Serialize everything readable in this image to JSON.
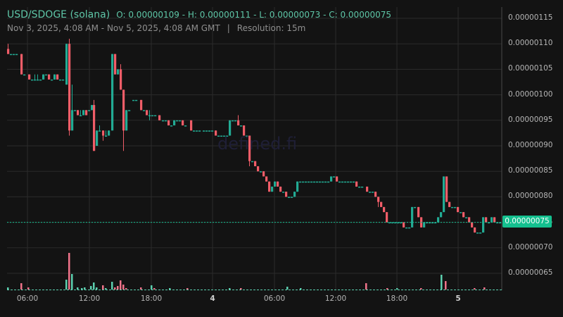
{
  "header": {
    "pair": "USD/SDOGE (solana)",
    "ohlc": "O: 0.00000109 - H: 0.00000111 - L: 0.00000073 - C: 0.00000075",
    "range": "Nov 3, 2025, 4:08 AM - Nov 5, 2025, 4:08 AM GMT",
    "separator": "|",
    "resolution": "Resolution: 15m"
  },
  "watermark": "defined.fi",
  "current_price_label": "0.00000075",
  "colors": {
    "background": "#131313",
    "grid": "#2b2b2b",
    "up": "#22ab94",
    "down": "#f05d68",
    "vol_up": "#5ccfaf",
    "vol_down": "#f0738a",
    "price_tag": "#14c08f",
    "text": "#b5b5b5",
    "header_accent": "#5fc7a8"
  },
  "chart_data": {
    "type": "candlestick",
    "title": "USD/SDOGE (solana)",
    "subtitle": "Nov 3, 2025, 4:08 AM - Nov 5, 2025, 4:08 AM GMT | Resolution: 15m",
    "price_unit": "1e-8",
    "y_ticks": [
      "0.00000115",
      "0.00000110",
      "0.00000105",
      "0.00000100",
      "0.00000095",
      "0.00000090",
      "0.00000085",
      "0.00000080",
      "0.00000075",
      "0.00000070",
      "0.00000065"
    ],
    "x_ticks": [
      {
        "label": "06:00",
        "x": 39,
        "bold": false
      },
      {
        "label": "12:00",
        "x": 127,
        "bold": false
      },
      {
        "label": "18:00",
        "x": 215,
        "bold": false
      },
      {
        "label": "4",
        "x": 302,
        "bold": true
      },
      {
        "label": "06:00",
        "x": 390,
        "bold": false
      },
      {
        "label": "12:00",
        "x": 477,
        "bold": false
      },
      {
        "label": "18:00",
        "x": 564,
        "bold": false
      },
      {
        "label": "5",
        "x": 651,
        "bold": true
      }
    ],
    "ylim": [
      6.2e-07,
      1.17e-06
    ],
    "last_price": 75,
    "candles": [
      [
        10,
        109,
        108,
        110,
        108
      ],
      [
        14,
        108,
        108,
        108,
        108
      ],
      [
        18,
        108,
        108,
        108,
        108
      ],
      [
        22,
        108,
        108,
        108,
        108
      ],
      [
        29,
        108,
        104,
        108,
        104
      ],
      [
        33,
        104,
        104,
        104,
        104
      ],
      [
        40,
        104,
        103,
        104,
        103
      ],
      [
        44,
        103,
        103,
        103,
        103
      ],
      [
        48,
        103,
        103,
        104,
        103
      ],
      [
        52,
        103,
        103,
        104,
        103
      ],
      [
        56,
        103,
        103,
        103,
        103
      ],
      [
        60,
        103,
        104,
        104,
        103
      ],
      [
        64,
        104,
        104,
        104,
        104
      ],
      [
        68,
        104,
        103,
        104,
        103
      ],
      [
        72,
        103,
        103,
        103,
        103
      ],
      [
        76,
        103,
        104,
        104,
        103
      ],
      [
        80,
        104,
        103,
        104,
        103
      ],
      [
        84,
        103,
        103,
        103,
        103
      ],
      [
        88,
        103,
        103,
        103,
        103
      ],
      [
        93,
        102,
        110,
        110,
        102
      ],
      [
        97,
        110,
        93,
        111,
        92
      ],
      [
        101,
        93,
        97,
        102,
        93
      ],
      [
        105,
        97,
        97,
        97,
        97
      ],
      [
        109,
        97,
        96,
        97,
        96
      ],
      [
        113,
        96,
        96,
        97,
        96
      ],
      [
        117,
        96,
        97,
        97,
        96
      ],
      [
        121,
        97,
        96,
        97,
        96
      ],
      [
        125,
        97,
        97,
        97,
        97
      ],
      [
        129,
        97,
        98,
        98,
        97
      ],
      [
        132,
        98,
        89,
        99,
        89
      ],
      [
        136,
        90,
        93,
        93,
        90
      ],
      [
        140,
        93,
        93,
        94,
        93
      ],
      [
        145,
        93,
        92,
        93,
        91
      ],
      [
        149,
        92,
        92,
        93,
        92
      ],
      [
        153,
        92,
        93,
        93,
        92
      ],
      [
        158,
        93,
        108,
        108,
        93
      ],
      [
        162,
        108,
        104,
        108,
        104
      ],
      [
        166,
        104,
        105,
        105,
        104
      ],
      [
        170,
        105,
        101,
        106,
        101
      ],
      [
        174,
        101,
        93,
        101,
        89
      ],
      [
        178,
        93,
        97,
        97,
        93
      ],
      [
        182,
        97,
        97,
        97,
        97
      ],
      [
        188,
        99,
        99,
        99,
        99
      ],
      [
        192,
        99,
        99,
        99,
        99
      ],
      [
        199,
        99,
        97,
        99,
        97
      ],
      [
        203,
        97,
        97,
        97,
        97
      ],
      [
        207,
        97,
        96,
        97,
        96
      ],
      [
        211,
        96,
        96,
        97,
        95
      ],
      [
        215,
        96,
        96,
        96,
        96
      ],
      [
        219,
        96,
        96,
        96,
        96
      ],
      [
        225,
        96,
        95,
        96,
        95
      ],
      [
        230,
        95,
        95,
        95,
        95
      ],
      [
        234,
        95,
        95,
        95,
        95
      ],
      [
        238,
        95,
        94,
        95,
        94
      ],
      [
        242,
        94,
        94,
        94,
        94
      ],
      [
        246,
        94,
        95,
        95,
        94
      ],
      [
        250,
        95,
        95,
        95,
        95
      ],
      [
        254,
        95,
        95,
        95,
        95
      ],
      [
        258,
        95,
        94,
        95,
        94
      ],
      [
        262,
        94,
        94,
        94,
        94
      ],
      [
        270,
        95,
        93,
        95,
        93
      ],
      [
        274,
        93,
        93,
        93,
        93
      ],
      [
        278,
        93,
        93,
        93,
        93
      ],
      [
        282,
        93,
        93,
        93,
        93
      ],
      [
        288,
        93,
        93,
        93,
        93
      ],
      [
        292,
        93,
        93,
        93,
        93
      ],
      [
        296,
        93,
        93,
        93,
        93
      ],
      [
        300,
        93,
        93,
        93,
        93
      ],
      [
        305,
        93,
        92,
        93,
        92
      ],
      [
        309,
        92,
        92,
        92,
        92
      ],
      [
        313,
        92,
        92,
        92,
        92
      ],
      [
        317,
        92,
        92,
        92,
        92
      ],
      [
        321,
        92,
        92,
        92,
        92
      ],
      [
        325,
        92,
        95,
        95,
        92
      ],
      [
        329,
        95,
        95,
        95,
        95
      ],
      [
        333,
        95,
        95,
        95,
        95
      ],
      [
        337,
        95,
        94,
        96,
        94
      ],
      [
        341,
        94,
        94,
        94,
        94
      ],
      [
        345,
        94,
        92,
        94,
        92
      ],
      [
        349,
        92,
        92,
        92,
        92
      ],
      [
        353,
        92,
        87,
        92,
        86
      ],
      [
        357,
        87,
        87,
        87,
        87
      ],
      [
        361,
        87,
        86,
        87,
        86
      ],
      [
        365,
        86,
        85,
        86,
        85
      ],
      [
        369,
        85,
        85,
        85,
        85
      ],
      [
        373,
        85,
        84,
        85,
        84
      ],
      [
        377,
        84,
        83,
        84,
        83
      ],
      [
        381,
        83,
        81,
        83,
        81
      ],
      [
        385,
        81,
        82,
        82,
        81
      ],
      [
        389,
        82,
        83,
        83,
        82
      ],
      [
        393,
        83,
        82,
        83,
        82
      ],
      [
        397,
        82,
        81,
        82,
        81
      ],
      [
        401,
        81,
        81,
        81,
        81
      ],
      [
        405,
        81,
        80,
        81,
        80
      ],
      [
        409,
        80,
        80,
        80,
        80
      ],
      [
        413,
        80,
        80,
        80,
        80
      ],
      [
        417,
        80,
        81,
        81,
        80
      ],
      [
        421,
        81,
        83,
        83,
        81
      ],
      [
        425,
        83,
        83,
        83,
        83
      ],
      [
        429,
        83,
        83,
        83,
        83
      ],
      [
        433,
        83,
        83,
        83,
        83
      ],
      [
        437,
        83,
        83,
        83,
        83
      ],
      [
        441,
        83,
        83,
        83,
        83
      ],
      [
        445,
        83,
        83,
        83,
        83
      ],
      [
        449,
        83,
        83,
        83,
        83
      ],
      [
        453,
        83,
        83,
        83,
        83
      ],
      [
        457,
        83,
        83,
        83,
        83
      ],
      [
        461,
        83,
        83,
        83,
        83
      ],
      [
        465,
        83,
        83,
        83,
        83
      ],
      [
        469,
        83,
        84,
        84,
        83
      ],
      [
        473,
        84,
        84,
        84,
        84
      ],
      [
        477,
        84,
        83,
        84,
        83
      ],
      [
        481,
        83,
        83,
        83,
        83
      ],
      [
        485,
        83,
        83,
        83,
        83
      ],
      [
        489,
        83,
        83,
        83,
        83
      ],
      [
        493,
        83,
        83,
        83,
        83
      ],
      [
        497,
        83,
        83,
        83,
        83
      ],
      [
        501,
        83,
        83,
        83,
        83
      ],
      [
        505,
        83,
        82,
        83,
        82
      ],
      [
        509,
        82,
        82,
        82,
        82
      ],
      [
        513,
        82,
        82,
        82,
        82
      ],
      [
        520,
        82,
        81,
        82,
        81
      ],
      [
        524,
        81,
        81,
        81,
        81
      ],
      [
        528,
        81,
        81,
        81,
        81
      ],
      [
        532,
        81,
        80,
        81,
        80
      ],
      [
        536,
        80,
        79,
        80,
        78
      ],
      [
        540,
        79,
        78,
        79,
        78
      ],
      [
        544,
        78,
        77,
        78,
        77
      ],
      [
        548,
        77,
        75,
        77,
        75
      ],
      [
        552,
        75,
        75,
        75,
        75
      ],
      [
        556,
        75,
        75,
        75,
        75
      ],
      [
        560,
        75,
        75,
        75,
        75
      ],
      [
        564,
        75,
        75,
        75,
        75
      ],
      [
        568,
        75,
        75,
        75,
        75
      ],
      [
        572,
        75,
        74,
        75,
        74
      ],
      [
        576,
        74,
        74,
        74,
        74
      ],
      [
        580,
        74,
        74,
        74,
        74
      ],
      [
        584,
        74,
        78,
        78,
        74
      ],
      [
        588,
        78,
        78,
        78,
        78
      ],
      [
        593,
        78,
        76,
        78,
        76
      ],
      [
        597,
        76,
        74,
        76,
        74
      ],
      [
        601,
        74,
        75,
        75,
        74
      ],
      [
        605,
        75,
        75,
        75,
        75
      ],
      [
        609,
        75,
        75,
        75,
        75
      ],
      [
        613,
        75,
        75,
        75,
        75
      ],
      [
        617,
        75,
        75,
        75,
        75
      ],
      [
        621,
        75,
        76,
        76,
        75
      ],
      [
        625,
        76,
        77,
        77,
        76
      ],
      [
        629,
        77,
        84,
        84,
        77
      ],
      [
        633,
        84,
        79,
        84,
        79
      ],
      [
        637,
        79,
        78,
        79,
        78
      ],
      [
        641,
        78,
        78,
        78,
        78
      ],
      [
        645,
        78,
        78,
        78,
        78
      ],
      [
        649,
        78,
        77,
        78,
        77
      ],
      [
        653,
        77,
        77,
        77,
        77
      ],
      [
        657,
        77,
        76,
        77,
        76
      ],
      [
        661,
        76,
        76,
        76,
        76
      ],
      [
        665,
        76,
        75,
        76,
        75
      ],
      [
        669,
        75,
        74,
        75,
        74
      ],
      [
        673,
        74,
        73,
        74,
        73
      ],
      [
        677,
        73,
        73,
        73,
        73
      ],
      [
        681,
        73,
        73,
        73,
        73
      ],
      [
        685,
        73,
        76,
        76,
        73
      ],
      [
        689,
        76,
        75,
        76,
        75
      ],
      [
        693,
        75,
        75,
        75,
        75
      ],
      [
        697,
        75,
        76,
        76,
        75
      ],
      [
        701,
        76,
        75,
        76,
        75
      ],
      [
        705,
        75,
        75,
        75,
        75
      ],
      [
        709,
        75,
        75,
        75,
        75
      ]
    ],
    "volumes": [
      [
        10,
        3,
        1
      ],
      [
        29,
        9,
        0
      ],
      [
        39,
        3,
        0
      ],
      [
        93,
        14,
        1
      ],
      [
        97,
        52,
        0
      ],
      [
        101,
        22,
        1
      ],
      [
        109,
        3,
        1
      ],
      [
        115,
        2,
        1
      ],
      [
        119,
        3,
        1
      ],
      [
        128,
        5,
        1
      ],
      [
        132,
        10,
        1
      ],
      [
        136,
        3,
        1
      ],
      [
        145,
        6,
        0
      ],
      [
        149,
        2,
        1
      ],
      [
        158,
        11,
        1
      ],
      [
        162,
        3,
        0
      ],
      [
        166,
        5,
        0
      ],
      [
        170,
        13,
        0
      ],
      [
        174,
        7,
        0
      ],
      [
        178,
        2,
        0
      ],
      [
        199,
        3,
        0
      ],
      [
        214,
        6,
        1
      ],
      [
        218,
        2,
        0
      ],
      [
        240,
        2,
        1
      ],
      [
        265,
        2,
        0
      ],
      [
        325,
        2,
        1
      ],
      [
        341,
        2,
        0
      ],
      [
        407,
        4,
        1
      ],
      [
        426,
        2,
        1
      ],
      [
        519,
        9,
        0
      ],
      [
        549,
        2,
        0
      ],
      [
        563,
        2,
        1
      ],
      [
        597,
        2,
        0
      ],
      [
        626,
        21,
        1
      ],
      [
        632,
        12,
        0
      ],
      [
        673,
        2,
        0
      ],
      [
        687,
        3,
        0
      ]
    ]
  }
}
